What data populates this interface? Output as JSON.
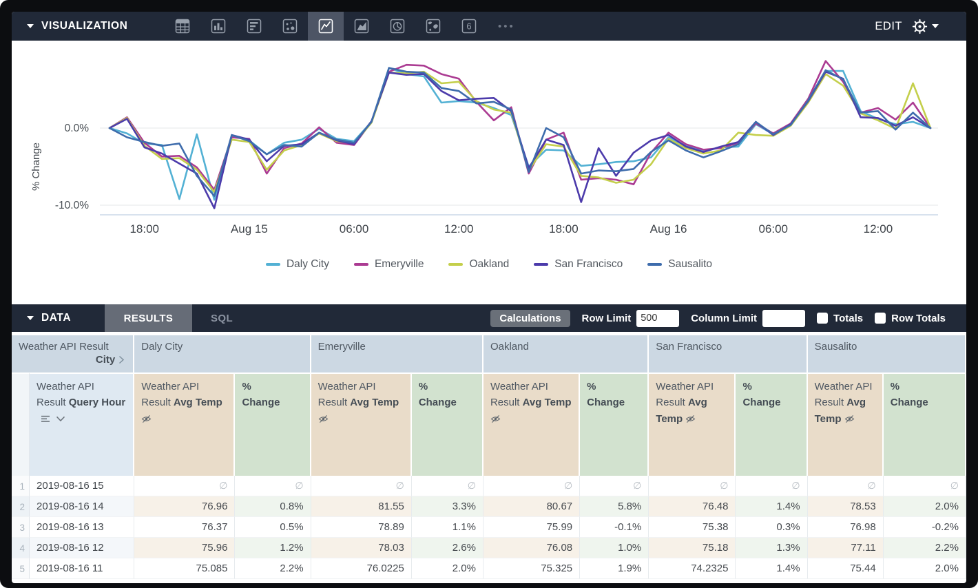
{
  "viz_bar": {
    "title": "VISUALIZATION",
    "edit_label": "EDIT",
    "more_glyph": "•••",
    "chart_types": [
      "table",
      "bar",
      "bar-horizontal",
      "scatter",
      "line",
      "area",
      "pie",
      "map",
      "single-value"
    ],
    "selected_chart_type": "line"
  },
  "chart_data": {
    "type": "line",
    "title": "",
    "xlabel": "",
    "ylabel": "% Change",
    "grid": "horizontal",
    "legend_position": "bottom",
    "ylim": [
      -11,
      10
    ],
    "yticks": [
      {
        "value": 0,
        "label": "0.0%"
      },
      {
        "value": -10,
        "label": "-10.0%"
      }
    ],
    "x_hours": [
      "2019-08-14 16",
      "2019-08-14 17",
      "2019-08-14 18",
      "2019-08-14 19",
      "2019-08-14 20",
      "2019-08-14 21",
      "2019-08-14 22",
      "2019-08-14 23",
      "2019-08-15 00",
      "2019-08-15 01",
      "2019-08-15 02",
      "2019-08-15 03",
      "2019-08-15 04",
      "2019-08-15 05",
      "2019-08-15 06",
      "2019-08-15 07",
      "2019-08-15 08",
      "2019-08-15 09",
      "2019-08-15 10",
      "2019-08-15 11",
      "2019-08-15 12",
      "2019-08-15 13",
      "2019-08-15 14",
      "2019-08-15 15",
      "2019-08-15 16",
      "2019-08-15 17",
      "2019-08-15 18",
      "2019-08-15 19",
      "2019-08-15 20",
      "2019-08-15 21",
      "2019-08-15 22",
      "2019-08-15 23",
      "2019-08-16 00",
      "2019-08-16 01",
      "2019-08-16 02",
      "2019-08-16 03",
      "2019-08-16 04",
      "2019-08-16 05",
      "2019-08-16 06",
      "2019-08-16 07",
      "2019-08-16 08",
      "2019-08-16 09",
      "2019-08-16 10",
      "2019-08-16 11",
      "2019-08-16 12",
      "2019-08-16 13",
      "2019-08-16 14",
      "2019-08-16 15"
    ],
    "xticks": [
      {
        "index": 2,
        "label": "18:00"
      },
      {
        "index": 8,
        "label": "Aug 15"
      },
      {
        "index": 14,
        "label": "06:00"
      },
      {
        "index": 20,
        "label": "12:00"
      },
      {
        "index": 26,
        "label": "18:00"
      },
      {
        "index": 32,
        "label": "Aug 16"
      },
      {
        "index": 38,
        "label": "06:00"
      },
      {
        "index": 44,
        "label": "12:00"
      }
    ],
    "series": [
      {
        "name": "Daly City",
        "color": "#53B1D4",
        "values": [
          0,
          -0.7,
          -2,
          -2.2,
          -9.2,
          -0.8,
          -9.3,
          -1,
          -1.6,
          -3.4,
          -1.9,
          -1.5,
          -0.1,
          -1.4,
          -1.7,
          0.8,
          7.8,
          7,
          6.7,
          3.3,
          3.5,
          3.3,
          2.6,
          1.7,
          -5,
          -2.8,
          -2.9,
          -4.9,
          -4.7,
          -4.4,
          -4.3,
          -3.8,
          -1.2,
          -2.3,
          -3,
          -2.5,
          -2.4,
          0.5,
          -0.8,
          0.4,
          3.4,
          7.4,
          7.4,
          2.2,
          1.2,
          0.5,
          0.8,
          0
        ]
      },
      {
        "name": "Emeryville",
        "color": "#AB3B92",
        "values": [
          0,
          1.4,
          -1.9,
          -3.7,
          -3.6,
          -5.1,
          -8,
          -1.2,
          -1.4,
          -5.9,
          -2.6,
          -2,
          0.1,
          -1.9,
          -2.2,
          0.8,
          7.3,
          8.2,
          8.1,
          7,
          6.4,
          3.4,
          1,
          2.7,
          -5.9,
          -1.5,
          -0.6,
          -6.7,
          -6.5,
          -6.7,
          -7.3,
          -3.2,
          -0.6,
          -2.1,
          -2.8,
          -2.6,
          -1.9,
          0.6,
          -0.7,
          0.6,
          3.8,
          8.7,
          6,
          2,
          2.6,
          1.1,
          3.3,
          0
        ]
      },
      {
        "name": "Oakland",
        "color": "#C4CF4B",
        "values": [
          0,
          1.3,
          -2.3,
          -4,
          -3.9,
          -5.4,
          -8.3,
          -1.5,
          -1.8,
          -5.4,
          -2.9,
          -2.2,
          -0.7,
          -1.7,
          -2,
          0.7,
          7.2,
          7.1,
          7.3,
          5.8,
          6,
          3.5,
          2.4,
          2,
          -5.5,
          -2.1,
          -2.4,
          -6.2,
          -6.4,
          -7.1,
          -6.7,
          -4.7,
          -1.4,
          -2.6,
          -3.3,
          -2.9,
          -0.6,
          -0.9,
          -1,
          0.3,
          3.3,
          7,
          5.5,
          1.9,
          1,
          -0.1,
          5.8,
          0
        ]
      },
      {
        "name": "San Francisco",
        "color": "#4C3BAB",
        "values": [
          0,
          1.2,
          -2.5,
          -3.3,
          -4.6,
          -5.9,
          -10.4,
          -0.9,
          -1.5,
          -4.3,
          -2.3,
          -2.1,
          -0.6,
          -1.6,
          -2.1,
          0.9,
          7.2,
          6.9,
          7,
          4.8,
          3.6,
          3.8,
          3.9,
          2.2,
          -5.2,
          -1.5,
          -2.2,
          -9.6,
          -2.6,
          -6.2,
          -3.2,
          -1.6,
          -0.9,
          -2.4,
          -3.1,
          -2.4,
          -1.8,
          0.8,
          -0.9,
          0.5,
          3.5,
          7.3,
          6.4,
          1.4,
          1.3,
          0.3,
          1.4,
          0
        ]
      },
      {
        "name": "Sausalito",
        "color": "#3E6CAC",
        "values": [
          0,
          -1.2,
          -1.8,
          -2.3,
          -2,
          -6.2,
          -8.8,
          -0.9,
          -1.7,
          -3.4,
          -2.2,
          -2.4,
          -0.6,
          -1.5,
          -1.9,
          0.8,
          7.8,
          7.3,
          7.2,
          5.2,
          4.8,
          3.2,
          3.4,
          2.4,
          -5.7,
          0,
          -1.2,
          -5.9,
          -5.5,
          -5.6,
          -5.3,
          -3.1,
          -1.6,
          -2.9,
          -3.8,
          -3,
          -2.1,
          0.8,
          -0.8,
          0.4,
          3.6,
          7.5,
          6.3,
          2,
          2.2,
          -0.2,
          2,
          0
        ]
      }
    ]
  },
  "data_bar": {
    "title": "DATA",
    "tabs": [
      "RESULTS",
      "SQL"
    ],
    "active_tab": "RESULTS",
    "calculations_label": "Calculations",
    "row_limit_label": "Row Limit",
    "row_limit_value": "500",
    "column_limit_label": "Column Limit",
    "column_limit_value": "",
    "totals_label": "Totals",
    "totals_checked": false,
    "row_totals_label": "Row Totals",
    "row_totals_checked": false
  },
  "table": {
    "row_header": {
      "line1": "Weather API Result",
      "line2": "City"
    },
    "cities": [
      "Daly City",
      "Emeryville",
      "Oakland",
      "San Francisco",
      "Sausalito"
    ],
    "dimension": {
      "prefix": "Weather API Result",
      "name": "Query Hour"
    },
    "measure_temp": {
      "prefix": "Weather API Result",
      "name": "Avg Temp"
    },
    "measure_pct": {
      "name": "% Change"
    },
    "null_glyph": "∅",
    "rows": [
      {
        "n": 1,
        "hour": "2019-08-16 15",
        "cells": [
          null,
          null,
          null,
          null,
          null,
          null,
          null,
          null,
          null,
          null
        ]
      },
      {
        "n": 2,
        "hour": "2019-08-16 14",
        "cells": [
          "76.96",
          "0.8%",
          "81.55",
          "3.3%",
          "80.67",
          "5.8%",
          "76.48",
          "1.4%",
          "78.53",
          "2.0%"
        ]
      },
      {
        "n": 3,
        "hour": "2019-08-16 13",
        "cells": [
          "76.37",
          "0.5%",
          "78.89",
          "1.1%",
          "75.99",
          "-0.1%",
          "75.38",
          "0.3%",
          "76.98",
          "-0.2%"
        ]
      },
      {
        "n": 4,
        "hour": "2019-08-16 12",
        "cells": [
          "75.96",
          "1.2%",
          "78.03",
          "2.6%",
          "76.08",
          "1.0%",
          "75.18",
          "1.3%",
          "77.11",
          "2.2%"
        ]
      },
      {
        "n": 5,
        "hour": "2019-08-16 11",
        "cells": [
          "75.085",
          "2.2%",
          "76.0225",
          "2.0%",
          "75.325",
          "1.9%",
          "74.2325",
          "1.4%",
          "75.44",
          "2.0%"
        ]
      }
    ]
  }
}
